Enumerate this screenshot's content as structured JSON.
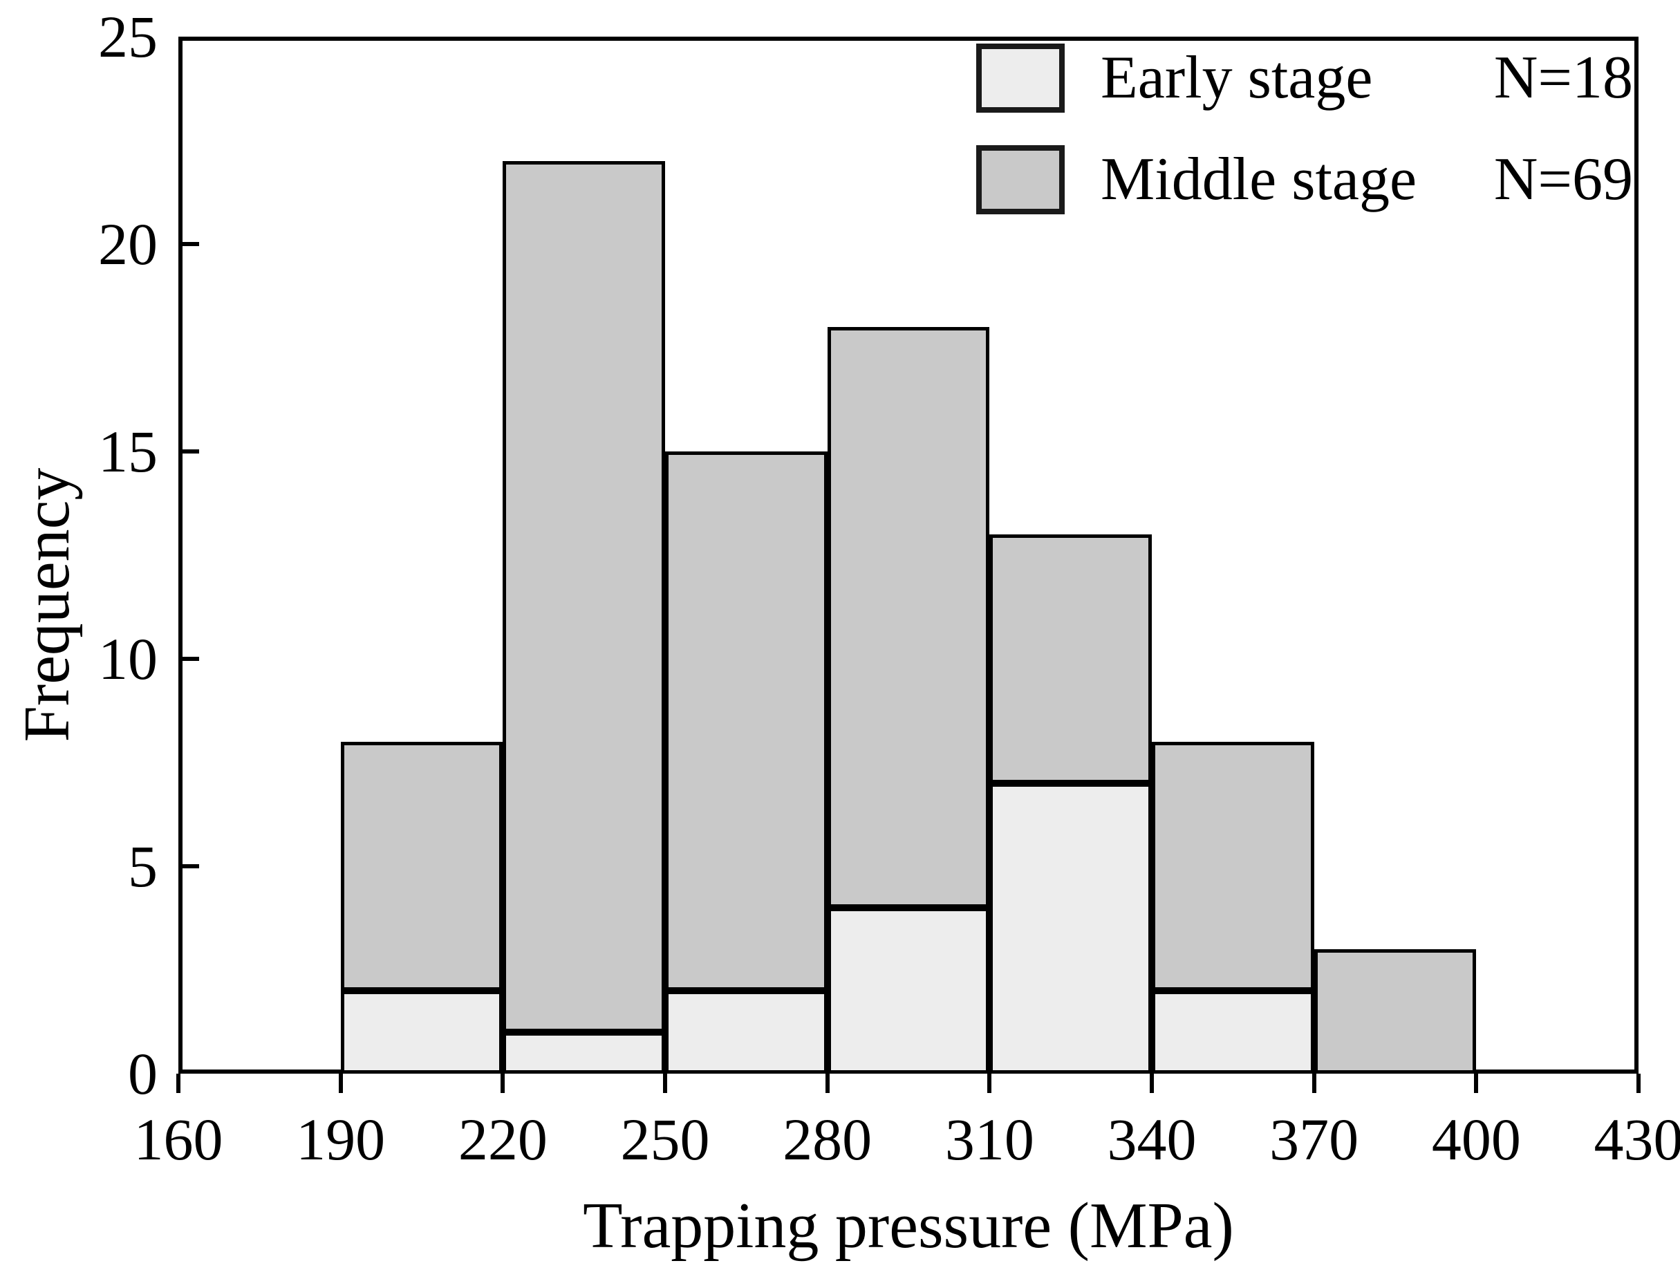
{
  "chart_data": {
    "type": "bar",
    "subtype": "stacked-histogram",
    "title": "",
    "xlabel": "Trapping pressure (MPa)",
    "ylabel": "Frequency",
    "xlim": [
      160,
      430
    ],
    "ylim": [
      0,
      25
    ],
    "x_ticks": [
      160,
      190,
      220,
      250,
      280,
      310,
      340,
      370,
      400,
      430
    ],
    "y_ticks": [
      0,
      5,
      10,
      15,
      20,
      25
    ],
    "grid": false,
    "legend_position": "top-right-inside",
    "bin_start": 190,
    "bin_width": 30,
    "bin_edges": [
      190,
      220,
      250,
      280,
      310,
      340,
      370,
      400
    ],
    "bar_edge_color": "#000000",
    "series": [
      {
        "name": "Early stage",
        "n_label": "N=18",
        "color": "#ededed",
        "values": [
          2,
          1,
          2,
          4,
          7,
          2,
          0
        ]
      },
      {
        "name": "Middle stage",
        "n_label": "N=69",
        "color": "#c9c9c9",
        "values": [
          6,
          21,
          13,
          14,
          6,
          6,
          3
        ]
      }
    ]
  }
}
